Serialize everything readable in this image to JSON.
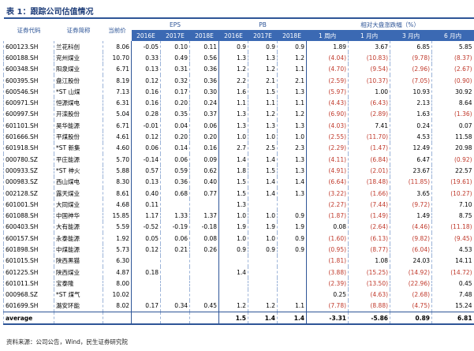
{
  "header": {
    "title": "表 1：跟踪公司估值情况"
  },
  "table": {
    "columns": {
      "code": "证券代码",
      "name": "证券简称",
      "price": "当前价",
      "eps": "EPS",
      "pb": "PB",
      "rel": "相对大盘涨跌幅（%）"
    },
    "subcolumns": [
      "2016E",
      "2017E",
      "2018E",
      "2016E",
      "2017E",
      "2018E",
      "1 周内",
      "1 月内",
      "3 月内",
      "6 月内"
    ],
    "rows": [
      [
        "600123.SH",
        "兰花科创",
        "8.06",
        "-0.05",
        "0.10",
        "0.11",
        "0.9",
        "0.9",
        "0.9",
        "1.89",
        "3.67",
        "6.85",
        "5.85"
      ],
      [
        "600188.SH",
        "兖州煤业",
        "10.70",
        "0.33",
        "0.49",
        "0.56",
        "1.3",
        "1.3",
        "1.2",
        "(4.04)",
        "(10.83)",
        "(9.78)",
        "(8.37)"
      ],
      [
        "600348.SH",
        "阳泉煤业",
        "6.71",
        "0.13",
        "0.31",
        "0.36",
        "1.2",
        "1.2",
        "1.1",
        "(4.70)",
        "(9.54)",
        "(2.96)",
        "(2.67)"
      ],
      [
        "600395.SH",
        "盘江股份",
        "8.19",
        "0.12",
        "0.32",
        "0.36",
        "2.2",
        "2.1",
        "2.1",
        "(2.59)",
        "(10.37)",
        "(7.05)",
        "(0.90)"
      ],
      [
        "600546.SH",
        "*ST 山煤",
        "7.13",
        "0.16",
        "0.17",
        "0.30",
        "1.6",
        "1.5",
        "1.3",
        "(5.97)",
        "1.00",
        "10.93",
        "30.92"
      ],
      [
        "600971.SH",
        "恒源煤电",
        "6.31",
        "0.16",
        "0.20",
        "0.24",
        "1.1",
        "1.1",
        "1.1",
        "(4.43)",
        "(6.43)",
        "2.13",
        "8.64"
      ],
      [
        "600997.SH",
        "开滦股份",
        "5.04",
        "0.28",
        "0.35",
        "0.37",
        "1.3",
        "1.2",
        "1.2",
        "(6.90)",
        "(2.89)",
        "1.63",
        "(1.36)"
      ],
      [
        "601101.SH",
        "昊华能源",
        "6.71",
        "-0.01",
        "0.04",
        "0.06",
        "1.3",
        "1.3",
        "1.3",
        "(4.03)",
        "7.41",
        "0.24",
        "0.07"
      ],
      [
        "601666.SH",
        "平煤股份",
        "4.61",
        "0.12",
        "0.20",
        "0.20",
        "1.0",
        "1.0",
        "1.0",
        "(2.55)",
        "(11.70)",
        "4.53",
        "11.58"
      ],
      [
        "601918.SH",
        "*ST 新集",
        "4.60",
        "0.06",
        "0.14",
        "0.16",
        "2.7",
        "2.5",
        "2.3",
        "(2.29)",
        "(1.47)",
        "12.49",
        "20.98"
      ],
      [
        "000780.SZ",
        "平庄能源",
        "5.70",
        "-0.14",
        "0.06",
        "0.09",
        "1.4",
        "1.4",
        "1.3",
        "(4.11)",
        "(6.84)",
        "6.47",
        "(0.92)"
      ],
      [
        "000933.SZ",
        "*ST 神火",
        "5.88",
        "0.57",
        "0.59",
        "0.62",
        "1.8",
        "1.5",
        "1.3",
        "(4.91)",
        "(2.01)",
        "23.67",
        "22.57"
      ],
      [
        "000983.SZ",
        "西山煤电",
        "8.30",
        "0.13",
        "0.36",
        "0.40",
        "1.5",
        "1.4",
        "1.4",
        "(6.64)",
        "(18.48)",
        "(11.85)",
        "(19.61)"
      ],
      [
        "002128.SZ",
        "露天煤业",
        "8.61",
        "0.40",
        "0.68",
        "0.77",
        "1.5",
        "1.4",
        "1.3",
        "(3.22)",
        "(1.66)",
        "3.65",
        "(10.27)"
      ],
      [
        "601001.SH",
        "大同煤业",
        "4.68",
        "0.11",
        null,
        null,
        "1.3",
        null,
        null,
        "(2.27)",
        "(7.44)",
        "(9.72)",
        "7.10"
      ],
      [
        "601088.SH",
        "中国神华",
        "15.85",
        "1.17",
        "1.33",
        "1.37",
        "1.0",
        "1.0",
        "0.9",
        "(1.87)",
        "(1.49)",
        "1.49",
        "8.75"
      ],
      [
        "600403.SH",
        "大有能源",
        "5.59",
        "-0.52",
        "-0.19",
        "-0.18",
        "1.9",
        "1.9",
        "1.9",
        "0.08",
        "(2.64)",
        "(4.46)",
        "(11.18)"
      ],
      [
        "600157.SH",
        "永泰能源",
        "1.92",
        "0.05",
        "0.06",
        "0.08",
        "1.0",
        "1.0",
        "0.9",
        "(1.60)",
        "(6.13)",
        "(9.82)",
        "(9.45)"
      ],
      [
        "601898.SH",
        "中煤能源",
        "5.73",
        "0.12",
        "0.21",
        "0.26",
        "0.9",
        "0.9",
        "0.9",
        "(0.95)",
        "(8.77)",
        "(6.04)",
        "4.53"
      ],
      [
        "601015.SH",
        "陕西黑猫",
        "6.30",
        null,
        null,
        null,
        null,
        null,
        null,
        "(1.81)",
        "1.08",
        "24.03",
        "14.11"
      ],
      [
        "601225.SH",
        "陕西煤业",
        "4.87",
        "0.18",
        null,
        null,
        "1.4",
        null,
        null,
        "(3.88)",
        "(15.25)",
        "(14.92)",
        "(14.72)"
      ],
      [
        "601011.SH",
        "宝泰隆",
        "8.00",
        null,
        null,
        null,
        null,
        null,
        null,
        "(2.39)",
        "(13.50)",
        "(22.96)",
        "0.45"
      ],
      [
        "000968.SZ",
        "*ST 煤气",
        "10.02",
        null,
        null,
        null,
        null,
        null,
        null,
        "0.25",
        "(4.63)",
        "(2.68)",
        "7.48"
      ],
      [
        "601699.SH",
        "潞安环能",
        "8.02",
        "0.17",
        "0.34",
        "0.45",
        "1.2",
        "1.2",
        "1.1",
        "(7.78)",
        "(8.88)",
        "(4.75)",
        "15.24"
      ]
    ],
    "average": [
      "average",
      null,
      null,
      null,
      null,
      null,
      "1.5",
      "1.4",
      "1.4",
      "-3.31",
      "-5.86",
      "0.89",
      "6.81"
    ]
  },
  "footer": {
    "source": "资料来源：公司公告，Wind，民生证券研究院"
  }
}
